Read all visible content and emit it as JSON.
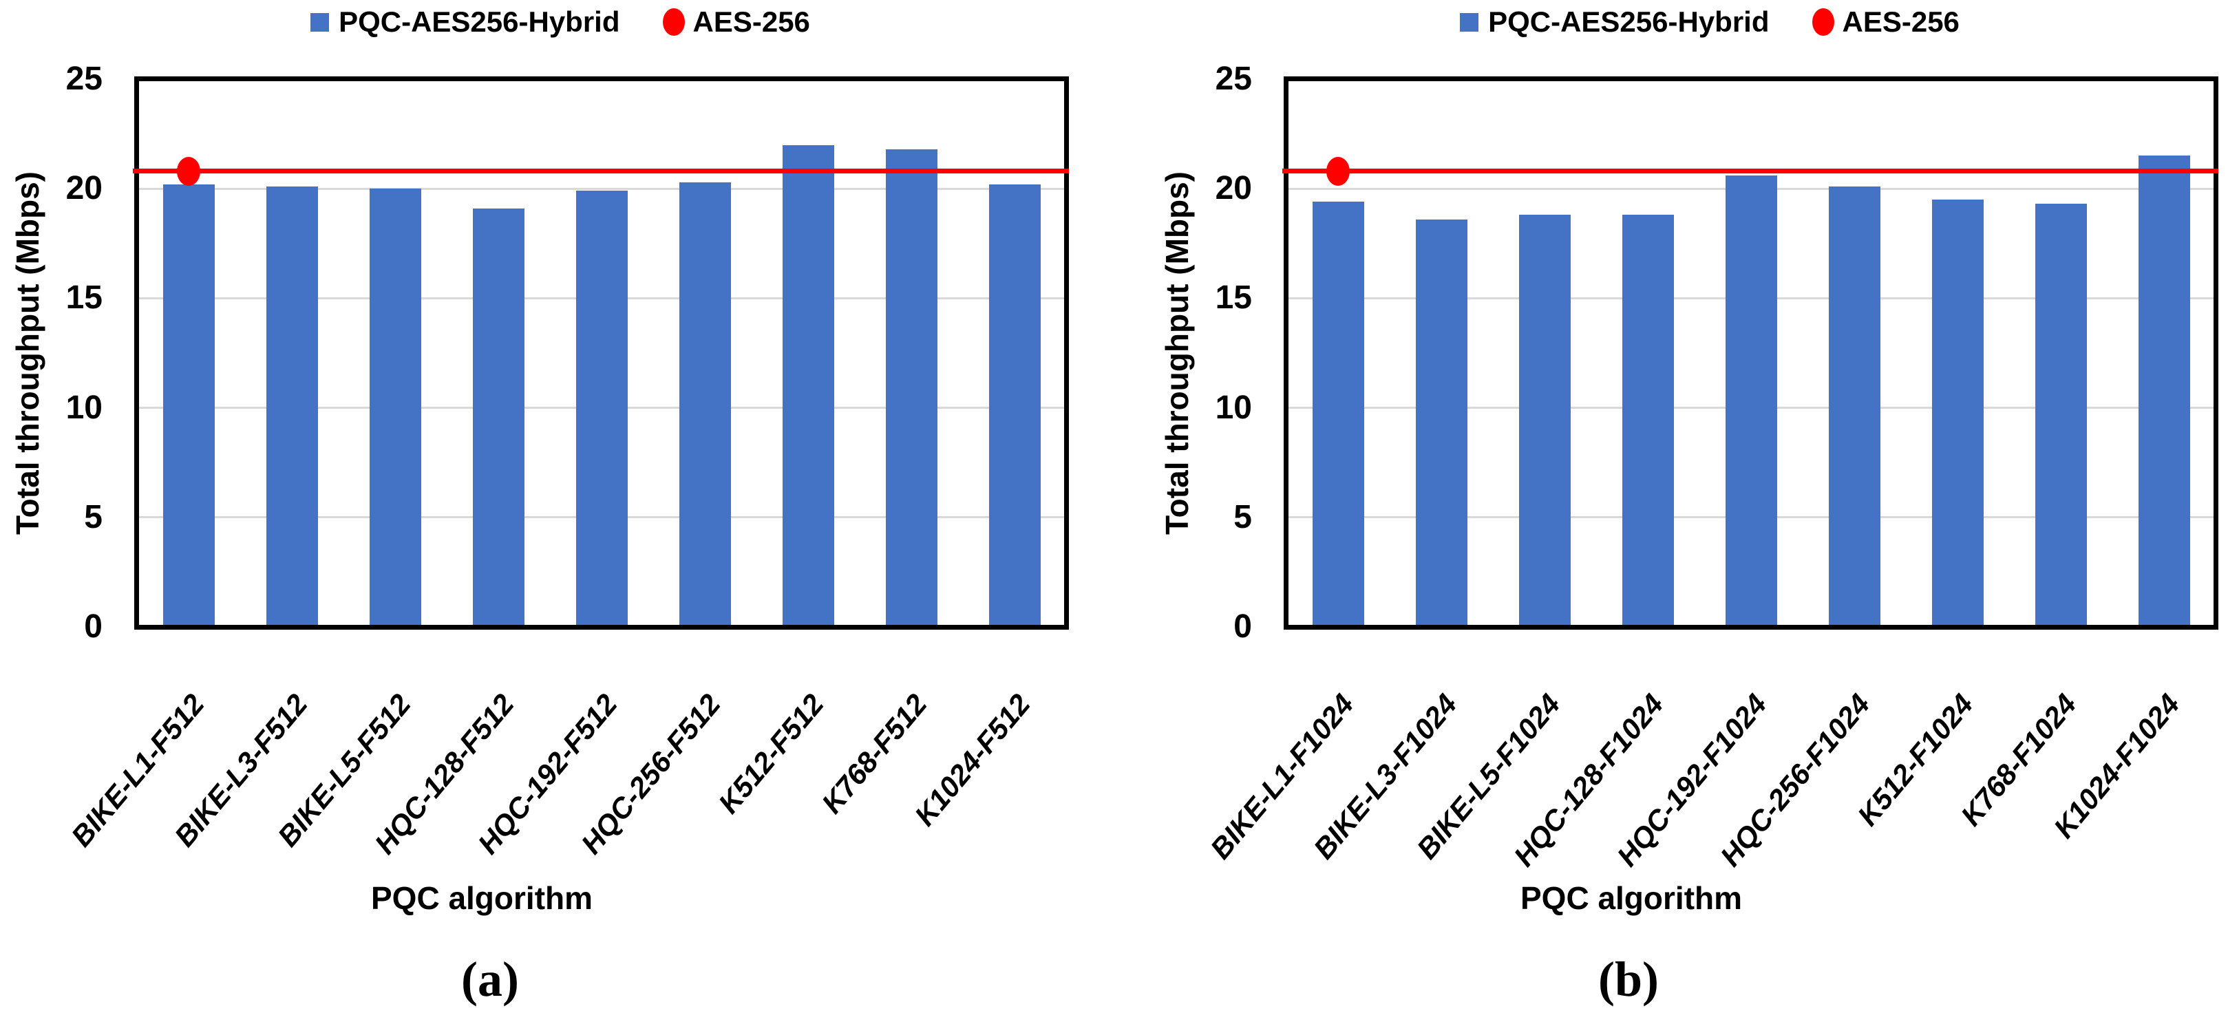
{
  "figure": {
    "background": "#FFFFFF",
    "colors": {
      "bar": "#4472C4",
      "aes_line": "#FF0000",
      "grid": "#D9D9D9",
      "axis": "#000000",
      "text": "#000000"
    }
  },
  "chart_data": [
    {
      "id": "a",
      "type": "bar",
      "caption": "(a)",
      "xlabel": "PQC algorithm",
      "ylabel": "Total throughput (Mbps)",
      "ylim": [
        0,
        25
      ],
      "yticks": [
        0,
        5,
        10,
        15,
        20,
        25
      ],
      "grid": true,
      "legend_position": "top",
      "categories": [
        "BIKE-L1-F512",
        "BIKE-L3-F512",
        "BIKE-L5-F512",
        "HQC-128-F512",
        "HQC-192-F512",
        "HQC-256-F512",
        "K512-F512",
        "K768-F512",
        "K1024-F512"
      ],
      "series": [
        {
          "name": "PQC-AES256-Hybrid",
          "type": "bar",
          "color": "#4472C4",
          "values": [
            20.2,
            20.1,
            20.0,
            19.1,
            19.9,
            20.3,
            22.0,
            21.8,
            20.2
          ]
        },
        {
          "name": "AES-256",
          "type": "hline",
          "color": "#FF0000",
          "value": 20.8,
          "marker": "oval",
          "marker_category_index": 0
        }
      ]
    },
    {
      "id": "b",
      "type": "bar",
      "caption": "(b)",
      "xlabel": "PQC algorithm",
      "ylabel": "Total throughput (Mbps)",
      "ylim": [
        0,
        25
      ],
      "yticks": [
        0,
        5,
        10,
        15,
        20,
        25
      ],
      "grid": true,
      "legend_position": "top",
      "categories": [
        "BIKE-L1-F1024",
        "BIKE-L3-F1024",
        "BIKE-L5-F1024",
        "HQC-128-F1024",
        "HQC-192-F1024",
        "HQC-256-F1024",
        "K512-F1024",
        "K768-F1024",
        "K1024-F1024"
      ],
      "series": [
        {
          "name": "PQC-AES256-Hybrid",
          "type": "bar",
          "color": "#4472C4",
          "values": [
            19.4,
            18.6,
            18.8,
            18.8,
            20.6,
            20.1,
            19.5,
            19.3,
            21.5
          ]
        },
        {
          "name": "AES-256",
          "type": "hline",
          "color": "#FF0000",
          "value": 20.8,
          "marker": "oval",
          "marker_category_index": 0
        }
      ]
    }
  ]
}
